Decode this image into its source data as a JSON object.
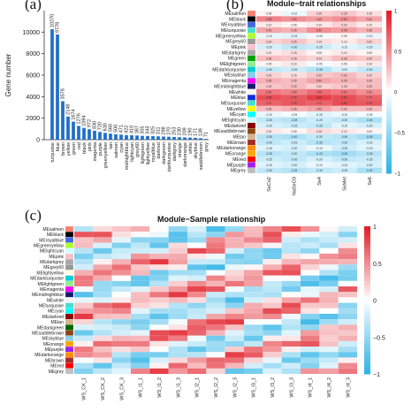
{
  "panels": {
    "a": {
      "letter": "(a)"
    },
    "b": {
      "letter": "(b)",
      "title": "Module−trait relationships"
    },
    "c": {
      "letter": "(c)",
      "title": "Module−Sample relationship"
    }
  },
  "colors": {
    "bar": "#1f6fc8",
    "heat_low": "#2fb3e6",
    "heat_mid": "#ffffff",
    "heat_high": "#e2202a"
  },
  "chart_data": [
    {
      "type": "bar",
      "ylabel": "Gene number",
      "ylim": [
        0,
        12000
      ],
      "yticks": [
        0,
        2000,
        4000,
        6000,
        8000,
        10000
      ],
      "categories": [
        "turquoise",
        "blue",
        "brown",
        "yellow",
        "green",
        "red",
        "black",
        "pink",
        "magenta",
        "purple",
        "greenyellow",
        "tan",
        "salmon",
        "cyan",
        "midnightblue",
        "lightcyan",
        "grey60",
        "lightgreen",
        "lightyellow",
        "royalblue",
        "darkred",
        "darkgreen",
        "darkturquoise",
        "darkgrey",
        "orange",
        "darkorange",
        "white",
        "skyblue",
        "saddlebrown",
        "grey"
      ],
      "values": [
        10270,
        9778,
        3578,
        2148,
        1674,
        1276,
        1094,
        972,
        830,
        720,
        630,
        560,
        500,
        471,
        422,
        410,
        387,
        355,
        343,
        325,
        311,
        288,
        270,
        253,
        230,
        209,
        190,
        171,
        139,
        71
      ],
      "data_labels": [
        "10270",
        "9778",
        "3578",
        "2148",
        "1674",
        "1276",
        "1094",
        "972",
        "830",
        "720",
        "630",
        "560",
        "500",
        "471",
        "422",
        "410",
        "387",
        "355",
        "343",
        "325",
        "311",
        "288",
        "270",
        "253",
        "230",
        "209",
        "190",
        "171",
        "139",
        "71"
      ]
    },
    {
      "type": "heatmap",
      "title": "Module−trait relationships",
      "rows": [
        "MEsalmon",
        "MEblack",
        "MEroyalblue",
        "MEturquoise",
        "MEgreenyellow",
        "MEgrey60",
        "MEpink",
        "MEdarkgrey",
        "MEgreen",
        "MElightgreen",
        "MEdarkturquoise",
        "MEskyblue",
        "MEmagenta",
        "MEmidnightblue",
        "MEwhite",
        "MEblue",
        "MEturquoise",
        "MEyellow",
        "MEcyan",
        "MElightcyan",
        "MEdarkred",
        "MEsaddlebrown",
        "MEtan",
        "MEbrown",
        "MEdarkorange",
        "MEorange",
        "MEred",
        "MEpurple",
        "MEgrey"
      ],
      "columns": [
        "SeCo2",
        "NaSeO3",
        "Se4",
        "SeMet",
        "Se6"
      ],
      "values": [
        [
          0.05,
          -0.1,
          0.2,
          0.25,
          0.15
        ],
        [
          0.55,
          0.5,
          0.45,
          0.5,
          0.4
        ],
        [
          0.1,
          0.05,
          0.1,
          0.2,
          0.1
        ],
        [
          0.4,
          0.35,
          0.5,
          0.45,
          0.35
        ],
        [
          -0.1,
          -0.15,
          -0.05,
          0.05,
          -0.1
        ],
        [
          0.2,
          0.25,
          0.15,
          0.1,
          0.2
        ],
        [
          -0.2,
          -0.3,
          -0.25,
          -0.15,
          -0.2
        ],
        [
          0.1,
          0.15,
          0.05,
          0.1,
          0.05
        ],
        [
          0.3,
          0.25,
          0.2,
          0.3,
          0.25
        ],
        [
          0.05,
          0.1,
          -0.05,
          0.05,
          0.1
        ],
        [
          -0.3,
          -0.25,
          -0.35,
          -0.2,
          -0.3
        ],
        [
          0.2,
          0.15,
          0.25,
          0.3,
          0.2
        ],
        [
          0.35,
          0.3,
          0.4,
          0.35,
          0.3
        ],
        [
          0.25,
          0.3,
          0.2,
          0.25,
          0.3
        ],
        [
          0.6,
          0.55,
          0.65,
          0.6,
          0.5
        ],
        [
          0.8,
          0.75,
          0.85,
          0.8,
          0.7
        ],
        [
          0.7,
          0.75,
          0.7,
          0.8,
          0.75
        ],
        [
          0.3,
          0.35,
          0.4,
          0.3,
          0.3
        ],
        [
          -0.1,
          -0.05,
          -0.15,
          -0.1,
          -0.05
        ],
        [
          -0.3,
          -0.35,
          -0.25,
          -0.3,
          -0.4
        ],
        [
          -0.2,
          -0.25,
          -0.3,
          -0.15,
          -0.2
        ],
        [
          0.1,
          0.05,
          0.15,
          0.1,
          0.05
        ],
        [
          -0.35,
          -0.4,
          -0.3,
          -0.35,
          -0.45
        ],
        [
          -0.3,
          -0.25,
          -0.35,
          -0.3,
          -0.2
        ],
        [
          -0.15,
          -0.2,
          -0.1,
          -0.25,
          -0.15
        ],
        [
          -0.35,
          -0.3,
          -0.4,
          -0.45,
          -0.35
        ],
        [
          -0.25,
          -0.3,
          -0.2,
          -0.3,
          -0.25
        ],
        [
          -0.15,
          -0.2,
          -0.1,
          -0.15,
          -0.2
        ],
        [
          -0.3,
          -0.35,
          -0.3,
          -0.25,
          -0.4
        ]
      ],
      "legend": {
        "ticks": [
          "1",
          "0.5",
          "0",
          "−0.5",
          "−1"
        ]
      }
    },
    {
      "type": "heatmap",
      "title": "Module−Sample relationship",
      "rows": [
        "MEsalmon",
        "MEblack",
        "MEroyalblue",
        "MEgreenyellow",
        "MElightcyan",
        "MEpink",
        "MEdarkgrey",
        "MEgrey60",
        "MElightyellow",
        "MEdarkturquoise",
        "MElightgreen",
        "MEmagenta",
        "MEmidnightblue",
        "MEwhite",
        "MEturquoise",
        "MEcyan",
        "MEdarkred",
        "MEtan",
        "MEdarkgreen",
        "MEsaddlebrown",
        "MEskyblue",
        "MEorange",
        "MEpurple",
        "MEdarkorange",
        "MEbrown",
        "MEred",
        "MEgrey"
      ],
      "columns": [
        "WS_CK_1",
        "WS_CK_2",
        "WS_CK_3",
        "WS_I1_1",
        "WS_I1_2",
        "WS_I1_3",
        "WS_I2_1",
        "WS_I2_2",
        "WS_I2_3",
        "WS_I3_1",
        "WS_I3_2",
        "WS_I3_3",
        "WS_I4_1",
        "WS_I4_2",
        "WS_I4_3"
      ],
      "legend": {
        "ticks": [
          "1",
          "0.5",
          "0",
          "−0.5",
          "−1"
        ]
      }
    }
  ]
}
